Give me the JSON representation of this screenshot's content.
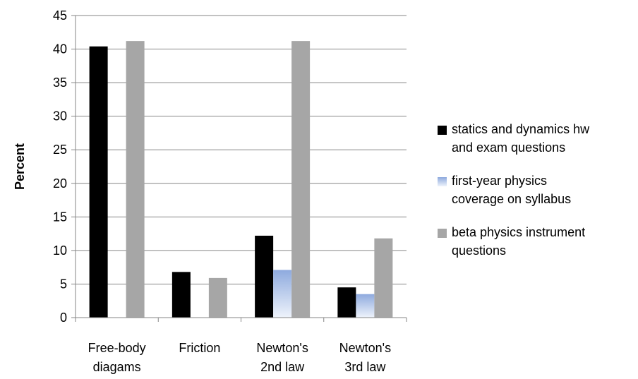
{
  "chart_data": {
    "type": "bar",
    "title": "",
    "xlabel": "",
    "ylabel": "Percent",
    "ylim": [
      0,
      45
    ],
    "yticks": [
      0,
      5,
      10,
      15,
      20,
      25,
      30,
      35,
      40,
      45
    ],
    "grid": true,
    "legend_position": "right",
    "categories": [
      [
        "Free-body",
        "diagams"
      ],
      [
        "Friction"
      ],
      [
        "Newton's",
        "2nd law"
      ],
      [
        "Newton's",
        "3rd law"
      ]
    ],
    "series": [
      {
        "name": "statics and dynamics hw and exam questions",
        "legend_lines": [
          "statics and dynamics hw",
          "and exam questions"
        ],
        "color": "#000000",
        "values": [
          40.4,
          6.8,
          12.2,
          4.5
        ]
      },
      {
        "name": "first-year physics coverage on syllabus",
        "legend_lines": [
          "first-year physics",
          "coverage on syllabus"
        ],
        "color": "#8eaade",
        "values": [
          0,
          0,
          7.1,
          3.5
        ]
      },
      {
        "name": "beta physics instrument questions",
        "legend_lines": [
          "beta physics instrument",
          "questions"
        ],
        "color": "#a6a6a6",
        "values": [
          41.2,
          5.9,
          41.2,
          11.8
        ]
      }
    ]
  }
}
